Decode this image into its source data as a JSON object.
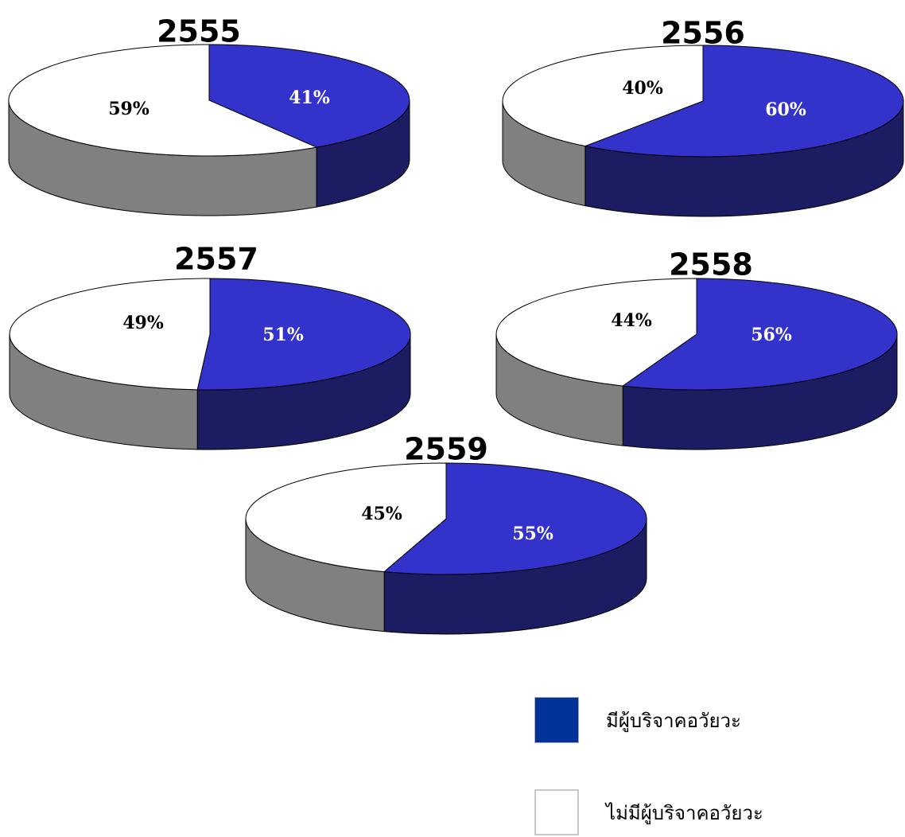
{
  "colors": {
    "donor_top": "#3333cc",
    "donor_side": "#1c1c62",
    "none_top": "#ffffff",
    "none_side": "#808080",
    "outline": "#000000",
    "legend_donor": "#003399",
    "legend_none": "#ffffff"
  },
  "chart_data": [
    {
      "type": "pie",
      "title": "2555",
      "categories": [
        "มีผู้บริจาคอวัยวะ",
        "ไม่มีผู้บริจาคอวัยวะ"
      ],
      "values": [
        41,
        59
      ],
      "labels": [
        "41%",
        "59%"
      ]
    },
    {
      "type": "pie",
      "title": "2556",
      "categories": [
        "มีผู้บริจาคอวัยวะ",
        "ไม่มีผู้บริจาคอวัยวะ"
      ],
      "values": [
        60,
        40
      ],
      "labels": [
        "60%",
        "40%"
      ]
    },
    {
      "type": "pie",
      "title": "2557",
      "categories": [
        "มีผู้บริจาคอวัยวะ",
        "ไม่มีผู้บริจาคอวัยวะ"
      ],
      "values": [
        51,
        49
      ],
      "labels": [
        "51%",
        "49%"
      ]
    },
    {
      "type": "pie",
      "title": "2558",
      "categories": [
        "มีผู้บริจาคอวัยวะ",
        "ไม่มีผู้บริจาคอวัยวะ"
      ],
      "values": [
        56,
        44
      ],
      "labels": [
        "56%",
        "44%"
      ]
    },
    {
      "type": "pie",
      "title": "2559",
      "categories": [
        "มีผู้บริจาคอวัยวะ",
        "ไม่มีผู้บริจาคอวัยวะ"
      ],
      "values": [
        55,
        45
      ],
      "labels": [
        "55%",
        "45%"
      ]
    }
  ],
  "legend": {
    "items": [
      {
        "label": "มีผู้บริจาคอวัยวะ",
        "color": "#003399"
      },
      {
        "label": "ไม่มีผู้บริจาคอวัยวะ",
        "color": "#ffffff"
      }
    ]
  }
}
